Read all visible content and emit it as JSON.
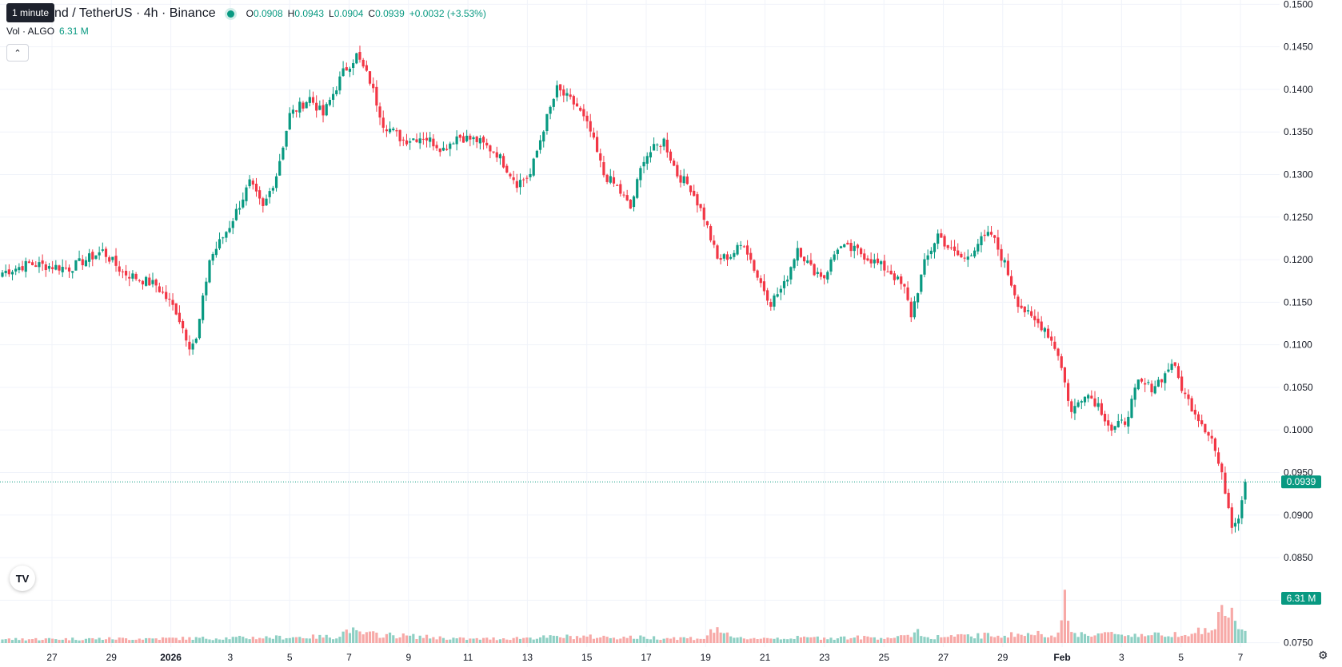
{
  "header": {
    "symbol": "nd / TetherUS · 4h · Binance",
    "open_label": "O",
    "open": "0.0908",
    "high_label": "H",
    "high": "0.0943",
    "low_label": "L",
    "low": "0.0904",
    "close_label": "C",
    "close": "0.0939",
    "change": "+0.0032 (+3.53%)"
  },
  "tooltip": "1 minute",
  "volume_legend": {
    "label": "Vol · ALGO",
    "value": "6.31 M"
  },
  "collapse_icon": "chevron-up-icon",
  "logo": "TV",
  "settings_icon": "gear-icon",
  "colors": {
    "up": "#089981",
    "down": "#f23645",
    "up_vol": "#8fd0c4",
    "down_vol": "#f7a9a7",
    "grid": "#f0f3fa"
  },
  "chart_data": {
    "type": "candlestick",
    "interval": "4h",
    "ylim": [
      0.0745,
      0.1505
    ],
    "y_ticks": [
      "0.1500",
      "0.1450",
      "0.1400",
      "0.1350",
      "0.1300",
      "0.1250",
      "0.1200",
      "0.1150",
      "0.1100",
      "0.1050",
      "0.1000",
      "0.0950",
      "0.0900",
      "0.0850",
      "0.0800",
      "0.0750"
    ],
    "x_ticks": [
      "27",
      "29",
      "2026",
      "3",
      "5",
      "7",
      "9",
      "11",
      "13",
      "15",
      "17",
      "19",
      "21",
      "23",
      "25",
      "27",
      "29",
      "Feb",
      "3",
      "5",
      "7"
    ],
    "last_price_label": "0.0939",
    "volume_label": "6.31 M",
    "volume_max_m": 40,
    "anchors": [
      [
        0,
        0.1185
      ],
      [
        8,
        0.1195
      ],
      [
        20,
        0.119
      ],
      [
        30,
        0.121
      ],
      [
        36,
        0.1185
      ],
      [
        46,
        0.117
      ],
      [
        52,
        0.114
      ],
      [
        56,
        0.11
      ],
      [
        58,
        0.1105
      ],
      [
        62,
        0.12
      ],
      [
        68,
        0.124
      ],
      [
        74,
        0.129
      ],
      [
        78,
        0.126
      ],
      [
        82,
        0.13
      ],
      [
        86,
        0.137
      ],
      [
        92,
        0.139
      ],
      [
        96,
        0.137
      ],
      [
        102,
        0.142
      ],
      [
        106,
        0.144
      ],
      [
        110,
        0.141
      ],
      [
        114,
        0.136
      ],
      [
        120,
        0.134
      ],
      [
        126,
        0.1345
      ],
      [
        132,
        0.133
      ],
      [
        136,
        0.1345
      ],
      [
        142,
        0.134
      ],
      [
        148,
        0.1325
      ],
      [
        154,
        0.129
      ],
      [
        158,
        0.13
      ],
      [
        162,
        0.1355
      ],
      [
        166,
        0.14
      ],
      [
        172,
        0.138
      ],
      [
        176,
        0.135
      ],
      [
        180,
        0.13
      ],
      [
        184,
        0.1285
      ],
      [
        188,
        0.126
      ],
      [
        192,
        0.132
      ],
      [
        198,
        0.134
      ],
      [
        202,
        0.13
      ],
      [
        206,
        0.1285
      ],
      [
        210,
        0.125
      ],
      [
        214,
        0.12
      ],
      [
        218,
        0.1205
      ],
      [
        222,
        0.122
      ],
      [
        226,
        0.118
      ],
      [
        230,
        0.115
      ],
      [
        234,
        0.117
      ],
      [
        238,
        0.1215
      ],
      [
        242,
        0.119
      ],
      [
        246,
        0.118
      ],
      [
        250,
        0.1215
      ],
      [
        256,
        0.121
      ],
      [
        262,
        0.1195
      ],
      [
        266,
        0.1185
      ],
      [
        270,
        0.1165
      ],
      [
        272,
        0.1135
      ],
      [
        276,
        0.1195
      ],
      [
        280,
        0.123
      ],
      [
        284,
        0.121
      ],
      [
        288,
        0.12
      ],
      [
        292,
        0.122
      ],
      [
        296,
        0.123
      ],
      [
        300,
        0.1195
      ],
      [
        304,
        0.115
      ],
      [
        308,
        0.113
      ],
      [
        312,
        0.112
      ],
      [
        316,
        0.109
      ],
      [
        320,
        0.102
      ],
      [
        324,
        0.1045
      ],
      [
        328,
        0.103
      ],
      [
        332,
        0.1
      ],
      [
        336,
        0.101
      ],
      [
        340,
        0.1055
      ],
      [
        344,
        0.105
      ],
      [
        348,
        0.1065
      ],
      [
        350,
        0.108
      ],
      [
        354,
        0.104
      ],
      [
        358,
        0.1015
      ],
      [
        362,
        0.099
      ],
      [
        366,
        0.093
      ],
      [
        368,
        0.089
      ],
      [
        370,
        0.09
      ],
      [
        372,
        0.0939
      ]
    ],
    "volume_profile": [
      [
        0,
        1.2
      ],
      [
        60,
        1.5
      ],
      [
        100,
        2.0
      ],
      [
        104,
        4.5
      ],
      [
        106,
        3.0
      ],
      [
        140,
        1.2
      ],
      [
        170,
        2.0
      ],
      [
        210,
        1.5
      ],
      [
        214,
        5.0
      ],
      [
        218,
        1.5
      ],
      [
        270,
        1.8
      ],
      [
        274,
        4.0
      ],
      [
        276,
        1.8
      ],
      [
        316,
        3.0
      ],
      [
        318,
        12.0
      ],
      [
        320,
        3.0
      ],
      [
        346,
        2.5
      ],
      [
        362,
        4.0
      ],
      [
        366,
        11.0
      ],
      [
        368,
        8.0
      ],
      [
        372,
        3.0
      ]
    ]
  }
}
